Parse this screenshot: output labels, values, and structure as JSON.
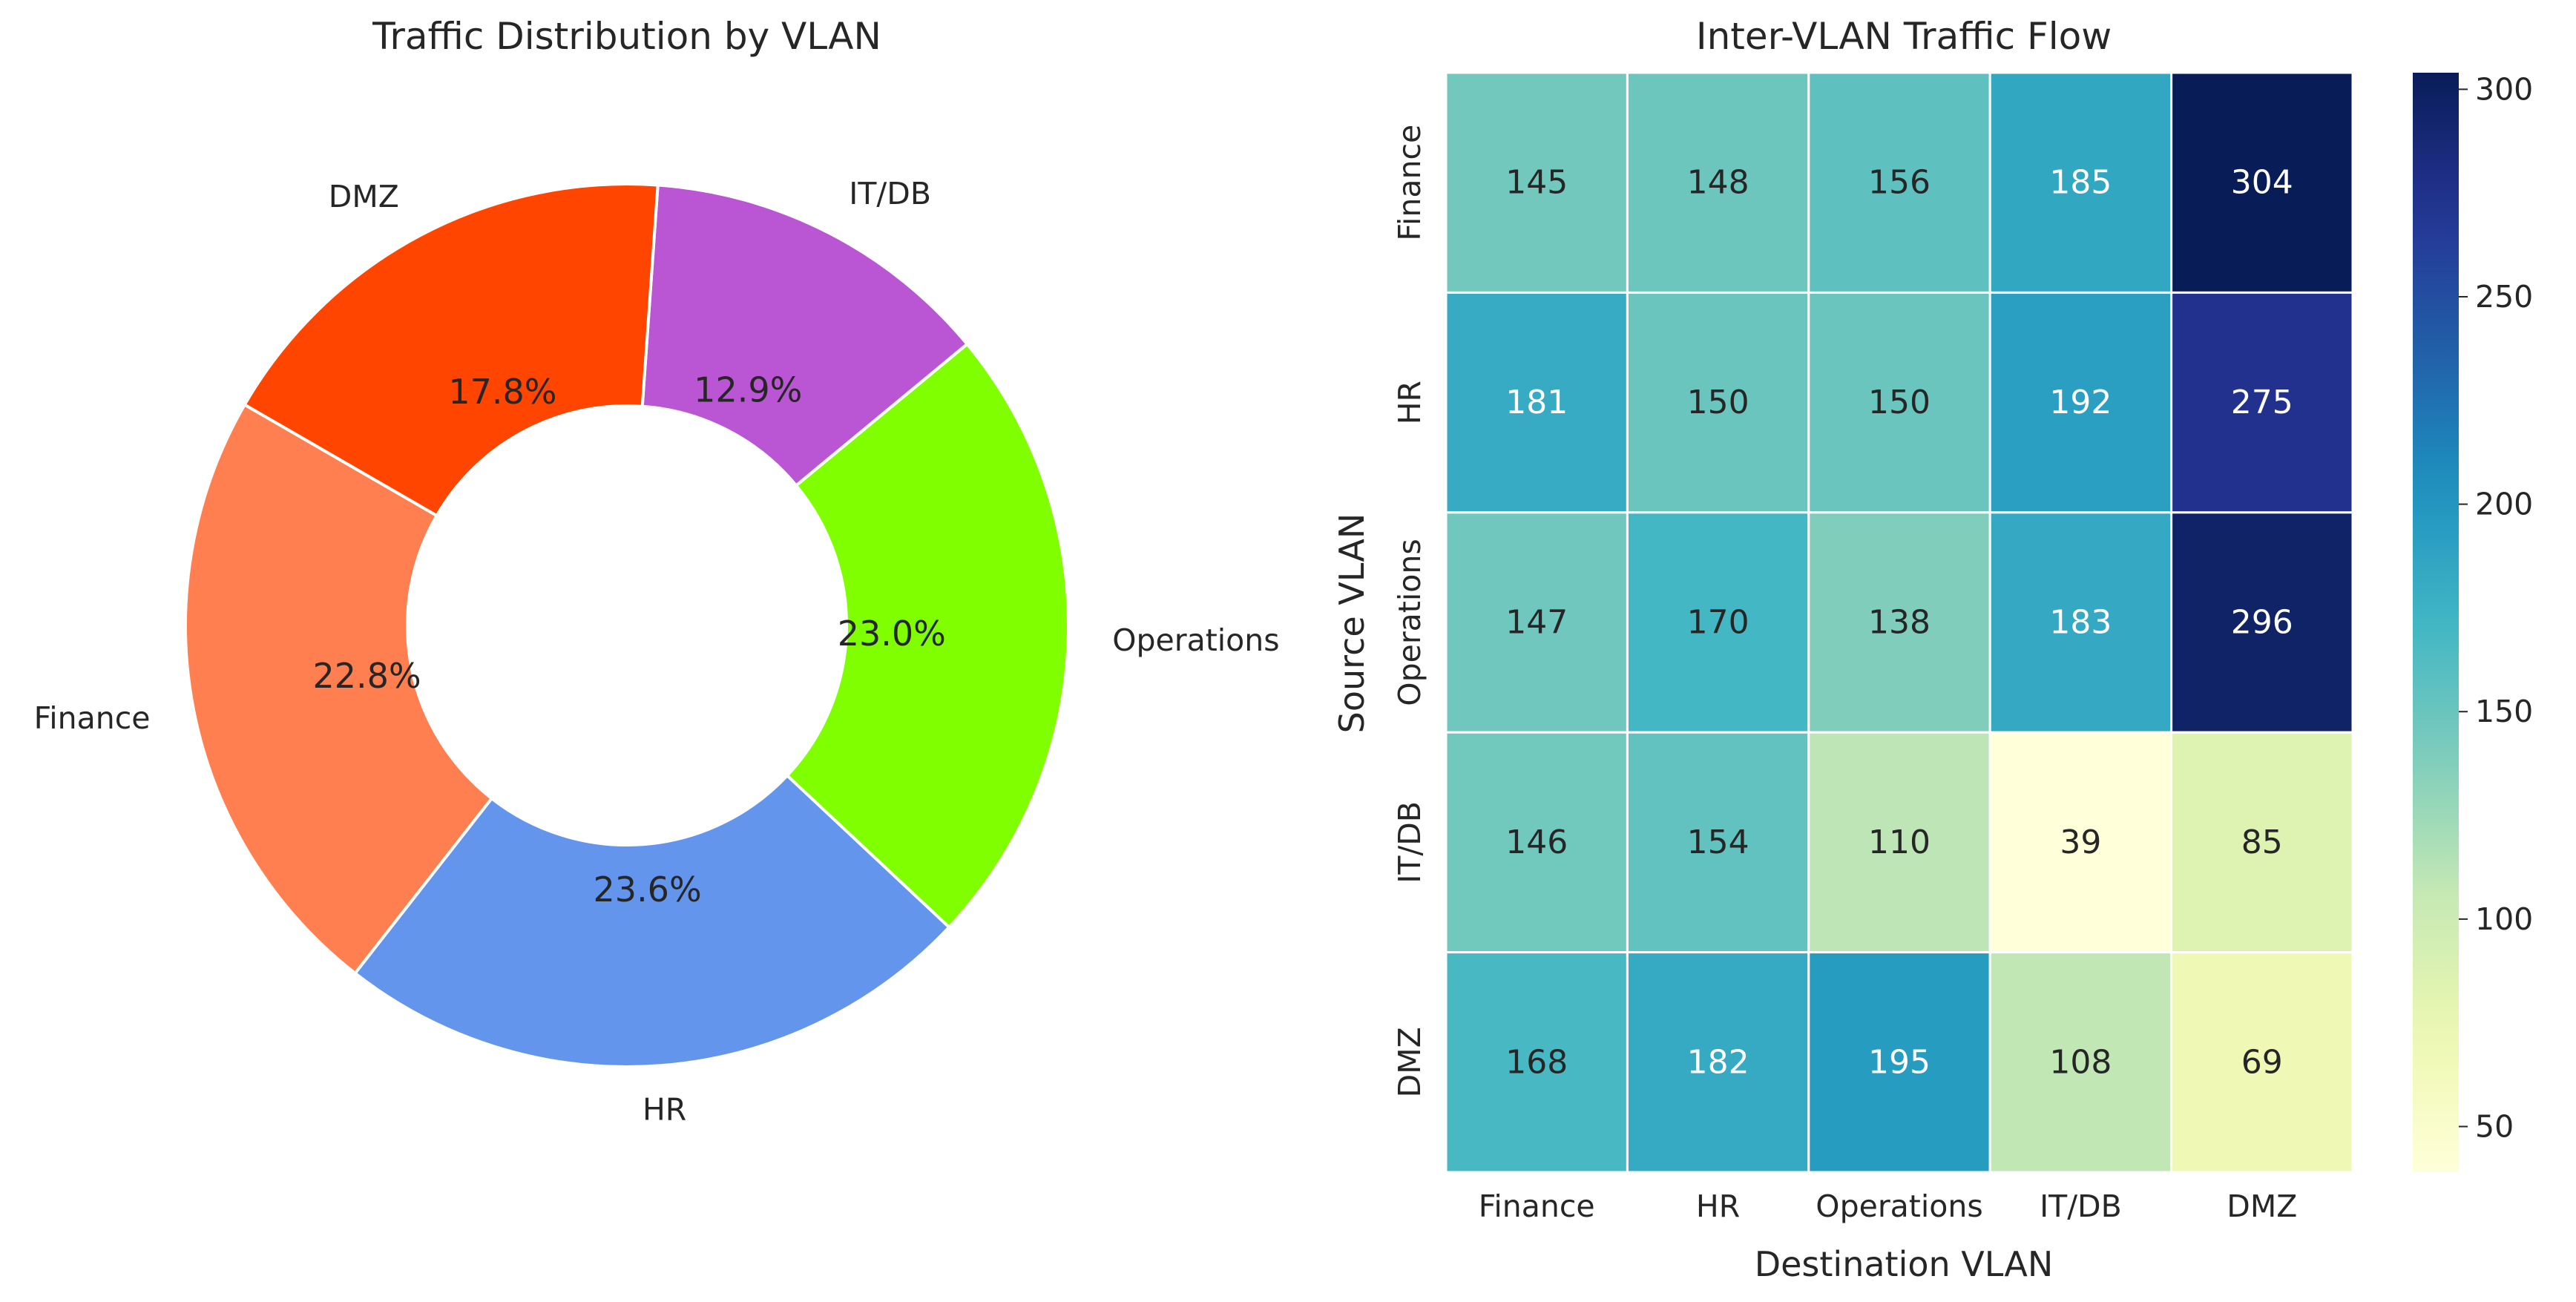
{
  "chart_data": [
    {
      "type": "pie",
      "title": "Traffic Distribution by VLAN",
      "donut": true,
      "labels": [
        "Finance",
        "HR",
        "Operations",
        "IT/DB",
        "DMZ"
      ],
      "values": [
        22.8,
        23.6,
        23.0,
        12.9,
        17.8
      ],
      "value_labels": [
        "22.8%",
        "23.6%",
        "23.0%",
        "12.9%",
        "17.8%"
      ],
      "colors": [
        "#ff7f50",
        "#6495ed",
        "#7fff00",
        "#ba55d3",
        "#ff4500"
      ],
      "start_angle": 150
    },
    {
      "type": "heatmap",
      "title": "Inter-VLAN Traffic Flow",
      "xlabel": "Destination VLAN",
      "ylabel": "Source VLAN",
      "x_categories": [
        "Finance",
        "HR",
        "Operations",
        "IT/DB",
        "DMZ"
      ],
      "y_categories": [
        "Finance",
        "HR",
        "Operations",
        "IT/DB",
        "DMZ"
      ],
      "values": [
        [
          145,
          148,
          156,
          185,
          304
        ],
        [
          181,
          150,
          150,
          192,
          275
        ],
        [
          147,
          170,
          138,
          183,
          296
        ],
        [
          146,
          154,
          110,
          39,
          85
        ],
        [
          168,
          182,
          195,
          108,
          69
        ]
      ],
      "colormap": "YlGnBu",
      "vmin": 39,
      "vmax": 304,
      "colorbar_ticks": [
        "50",
        "100",
        "150",
        "200",
        "250",
        "300"
      ]
    }
  ]
}
